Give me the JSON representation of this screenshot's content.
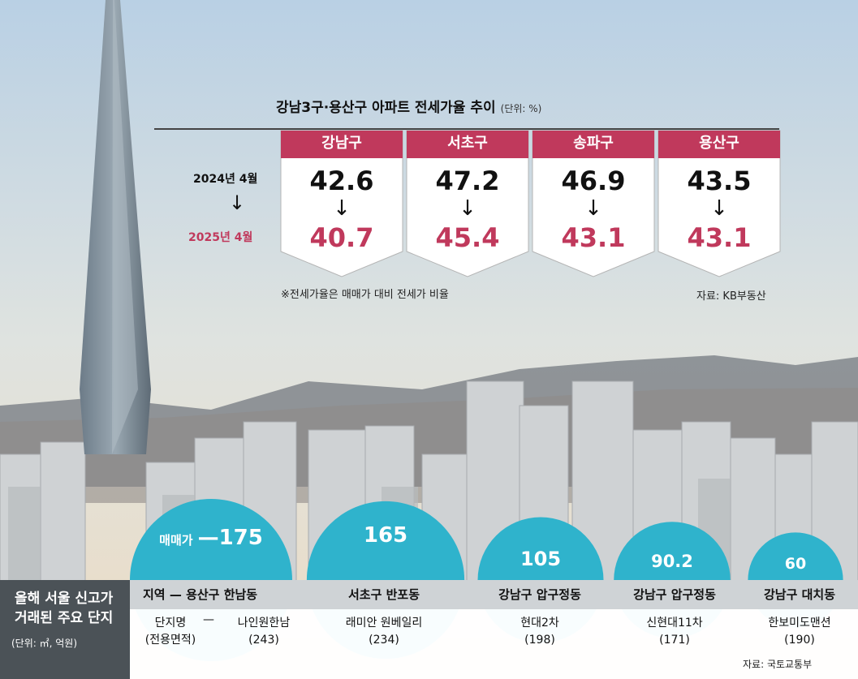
{
  "chart_data": [
    {
      "type": "table",
      "title": "강남3구·용산구 아파트 전세가율 추이",
      "unit": "(단위: %)",
      "row_labels": [
        "2024년 4월",
        "2025년 4월"
      ],
      "arrow": "↓",
      "columns": [
        {
          "district": "강남구",
          "v2024": 42.6,
          "v2025": 40.7
        },
        {
          "district": "서초구",
          "v2024": 47.2,
          "v2025": 45.4
        },
        {
          "district": "송파구",
          "v2024": 46.9,
          "v2025": 43.1
        },
        {
          "district": "용산구",
          "v2024": 43.5,
          "v2025": 43.1
        }
      ],
      "note": "※전세가율은 매매가 대비 전세가 비율",
      "source": "자료: KB부동산"
    },
    {
      "type": "bar",
      "title": "올해 서울 신고가 거래된 주요 단지",
      "title_lines": [
        "올해 서울 신고가",
        "거래된 주요 단지"
      ],
      "unit": "(단위: ㎡, 억원)",
      "value_label": "매매가",
      "dash": "—",
      "region_header": "지역",
      "complex_header_lines": [
        "단지명",
        "(전용면적)"
      ],
      "items": [
        {
          "region": "용산구 한남동",
          "complex": "나인원한남",
          "area": "(243)",
          "price": 175
        },
        {
          "region": "서초구 반포동",
          "complex": "래미안 원베일리",
          "area": "(234)",
          "price": 165
        },
        {
          "region": "강남구 압구정동",
          "complex": "현대2차",
          "area": "(198)",
          "price": 105
        },
        {
          "region": "강남구 압구정동",
          "complex": "신현대11차",
          "area": "(171)",
          "price": 90.2
        },
        {
          "region": "강남구 대치동",
          "complex": "한보미도맨션",
          "area": "(190)",
          "price": 60
        }
      ],
      "source": "자료: 국토교통부"
    }
  ],
  "colors": {
    "card_header": "#c0395c",
    "value_2025": "#c0395c",
    "bubble": "#2fb3cc",
    "left_block": "#4b5257"
  }
}
